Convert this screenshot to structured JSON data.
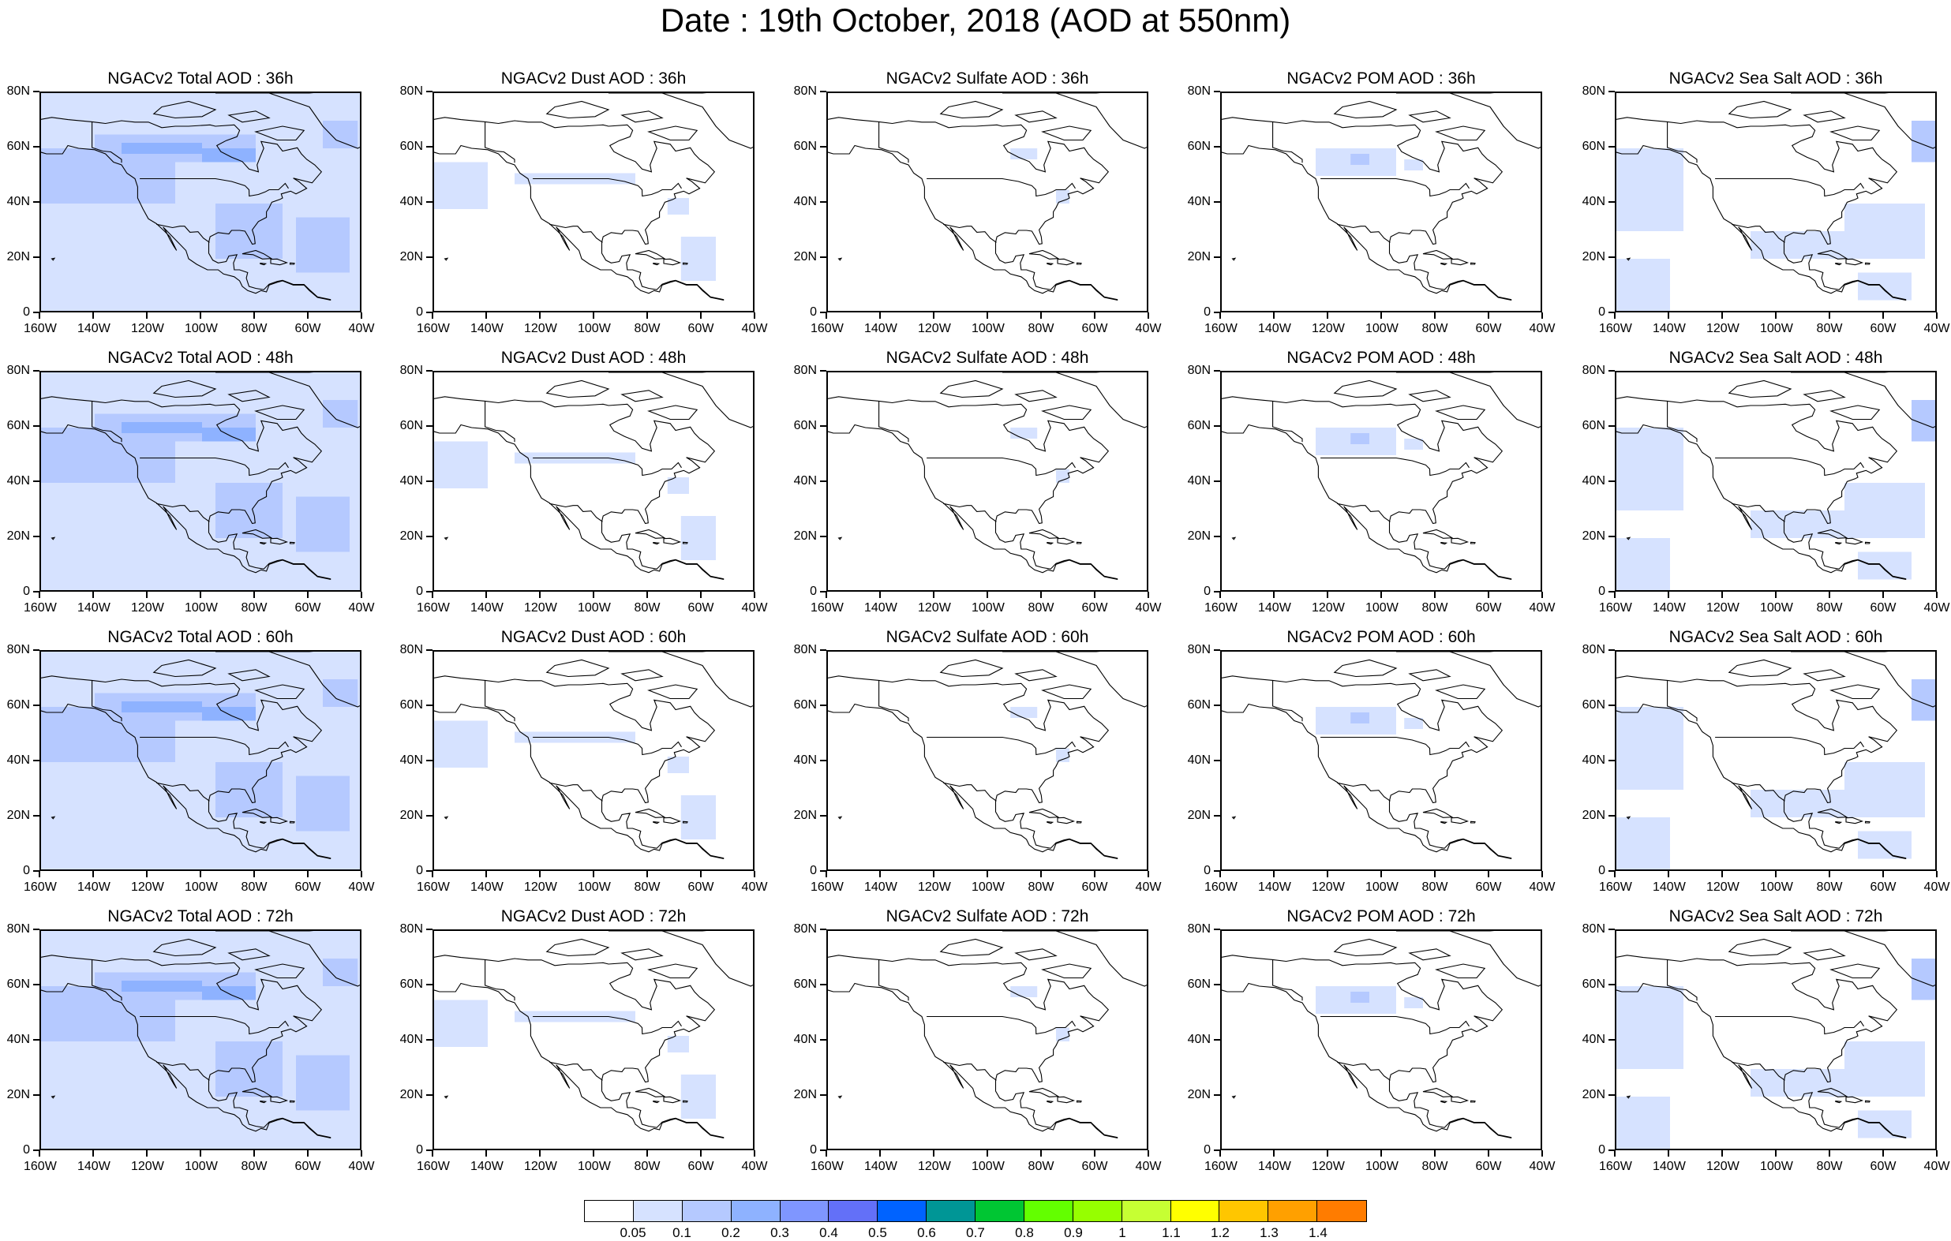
{
  "title": "Date : 19th October, 2018 (AOD at 550nm)",
  "rows": [
    {
      "lead": "36h",
      "panels": [
        {
          "title": "NGACv2 Total AOD : 36h",
          "species": "total"
        },
        {
          "title": "NGACv2 Dust AOD : 36h",
          "species": "dust"
        },
        {
          "title": "NGACv2 Sulfate AOD : 36h",
          "species": "sulfate"
        },
        {
          "title": "NGACv2 POM AOD : 36h",
          "species": "pom"
        },
        {
          "title": "NGACv2 Sea Salt AOD : 36h",
          "species": "seasalt"
        }
      ]
    },
    {
      "lead": "48h",
      "panels": [
        {
          "title": "NGACv2 Total AOD : 48h",
          "species": "total"
        },
        {
          "title": "NGACv2 Dust AOD : 48h",
          "species": "dust"
        },
        {
          "title": "NGACv2 Sulfate AOD : 48h",
          "species": "sulfate"
        },
        {
          "title": "NGACv2 POM AOD : 48h",
          "species": "pom"
        },
        {
          "title": "NGACv2 Sea Salt AOD : 48h",
          "species": "seasalt"
        }
      ]
    },
    {
      "lead": "60h",
      "panels": [
        {
          "title": "NGACv2 Total AOD : 60h",
          "species": "total"
        },
        {
          "title": "NGACv2 Dust AOD : 60h",
          "species": "dust"
        },
        {
          "title": "NGACv2 Sulfate AOD : 60h",
          "species": "sulfate"
        },
        {
          "title": "NGACv2 POM AOD : 60h",
          "species": "pom"
        },
        {
          "title": "NGACv2 Sea Salt AOD : 60h",
          "species": "seasalt"
        }
      ]
    },
    {
      "lead": "72h",
      "panels": [
        {
          "title": "NGACv2 Total AOD : 72h",
          "species": "total"
        },
        {
          "title": "NGACv2 Dust AOD : 72h",
          "species": "dust"
        },
        {
          "title": "NGACv2 Sulfate AOD : 72h",
          "species": "sulfate"
        },
        {
          "title": "NGACv2 POM AOD : 72h",
          "species": "pom"
        },
        {
          "title": "NGACv2 Sea Salt  AOD : 72h",
          "species": "seasalt"
        }
      ]
    }
  ],
  "axes": {
    "x_ticks": [
      "160W",
      "140W",
      "120W",
      "100W",
      "80W",
      "60W",
      "40W"
    ],
    "y_ticks": [
      "80N",
      "60N",
      "40N",
      "20N",
      "0"
    ],
    "lon_range": [
      -160,
      -40
    ],
    "lat_range": [
      0,
      80
    ]
  },
  "colorbar": {
    "labels": [
      "0.05",
      "0.1",
      "0.2",
      "0.3",
      "0.4",
      "0.5",
      "0.6",
      "0.7",
      "0.8",
      "0.9",
      "1",
      "1.1",
      "1.2",
      "1.3",
      "1.4"
    ],
    "colors": [
      "#ffffff",
      "#d6e2ff",
      "#b5c9ff",
      "#8eb2ff",
      "#7f96ff",
      "#6370f8",
      "#0063ff",
      "#009696",
      "#00c633",
      "#63ff00",
      "#96ff00",
      "#c6ff33",
      "#ffff00",
      "#ffc600",
      "#ffa000",
      "#ff7c00",
      "#ff1900"
    ]
  },
  "chart_data": {
    "type": "map",
    "variable": "AOD at 550nm",
    "date": "19th October, 2018",
    "note_levels": [
      0.05,
      0.1,
      0.2,
      0.3,
      0.4,
      0.5,
      0.6,
      0.7,
      0.8,
      0.9,
      1,
      1.1,
      1.2,
      1.3,
      1.4
    ],
    "legend_placement": "bottom"
  }
}
